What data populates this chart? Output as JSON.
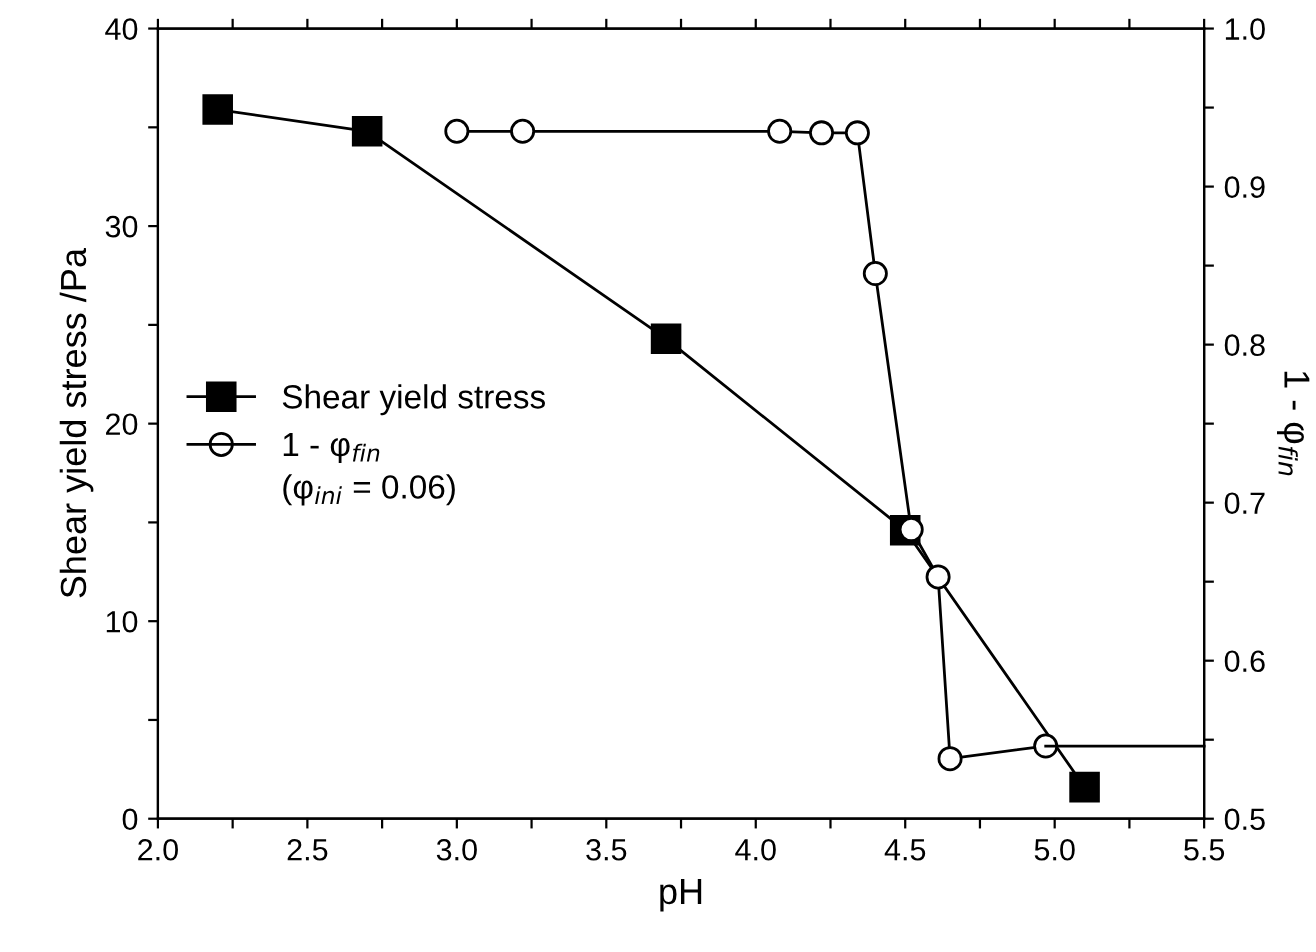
{
  "chart_data": {
    "type": "line",
    "xlabel": "pH",
    "ylabel": "Shear yield stress /Pa",
    "y2label": "1 - φ$_{fin}$",
    "xlim": [
      2.0,
      5.5
    ],
    "xticks": [
      {
        "value": 2.0,
        "label": "2.0"
      },
      {
        "value": 2.25,
        "label": null
      },
      2.5,
      {
        "value": 2.75,
        "label": null
      },
      {
        "value": 3.0,
        "label": "3.0"
      },
      {
        "value": 3.25,
        "label": null
      },
      3.5,
      {
        "value": 3.75,
        "label": null
      },
      {
        "value": 4.0,
        "label": "4.0"
      },
      {
        "value": 4.25,
        "label": null
      },
      4.5,
      {
        "value": 4.75,
        "label": null
      },
      {
        "value": 5.0,
        "label": "5.0"
      },
      {
        "value": 5.25,
        "label": null
      },
      5.5
    ],
    "ylim": [
      0,
      40
    ],
    "yticks": [
      0,
      {
        "value": 5,
        "label": null
      },
      10,
      {
        "value": 15,
        "label": null
      },
      20,
      {
        "value": 25,
        "label": null
      },
      30,
      {
        "value": 35,
        "label": null
      },
      40
    ],
    "y2lim": [
      0.5,
      1.0
    ],
    "y2ticks": [
      0.5,
      {
        "value": 0.55,
        "label": null
      },
      0.6,
      {
        "value": 0.65,
        "label": null
      },
      0.7,
      {
        "value": 0.75,
        "label": null
      },
      0.8,
      {
        "value": 0.85,
        "label": null
      },
      0.9,
      {
        "value": 0.95,
        "label": null
      },
      {
        "value": 1.0,
        "label": "1.0"
      }
    ],
    "grid": false,
    "legend": "center left",
    "annotations": [
      "(φ$_{ini}$ = 0.06)"
    ],
    "series": [
      {
        "name": "Shear yield stress",
        "color": "#000000",
        "marker": "square",
        "x": [
          2.2,
          2.7,
          3.7,
          4.5,
          5.1
        ],
        "values": [
          35.9,
          34.8,
          24.3,
          14.6,
          1.6
        ]
      },
      {
        "name": "1 - φ$_{fin}$",
        "axis": "y2",
        "color": "#000000",
        "marker": "circle",
        "x": [
          3.0,
          3.22,
          4.08,
          4.22,
          4.34,
          4.4,
          4.52,
          4.61,
          4.65,
          4.97
        ],
        "values": [
          0.935,
          0.935,
          0.935,
          0.934,
          0.934,
          0.845,
          0.683,
          0.653,
          0.538,
          0.546
        ]
      },
      {
        "axis": "y2",
        "color": "#000000",
        "marker": "none",
        "x": [
          4.97,
          5.5
        ],
        "values": [
          0.546,
          0.546
        ]
      }
    ]
  }
}
